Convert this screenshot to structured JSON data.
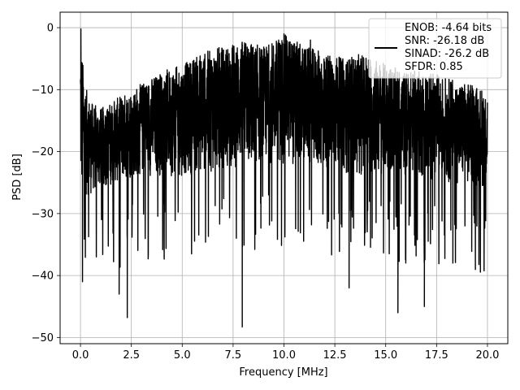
{
  "chart_data": {
    "type": "line",
    "xlabel": "Frequency [MHz]",
    "ylabel": "PSD [dB]",
    "xlim": [
      -1.0,
      21.0
    ],
    "ylim": [
      -51.0,
      2.5
    ],
    "xticks": [
      0.0,
      2.5,
      5.0,
      7.5,
      10.0,
      12.5,
      15.0,
      17.5,
      20.0
    ],
    "xtick_labels": [
      "0.0",
      "2.5",
      "5.0",
      "7.5",
      "10.0",
      "12.5",
      "15.0",
      "17.5",
      "20.0"
    ],
    "yticks": [
      0,
      -10,
      -20,
      -30,
      -40,
      -50
    ],
    "ytick_labels": [
      "0",
      "−10",
      "−20",
      "−30",
      "−40",
      "−50"
    ],
    "grid": true,
    "legend_position": "top-right",
    "legend_lines": [
      "ENOB: -4.64 bits",
      "SNR: -26.18 dB",
      "SINAD: -26.2 dB",
      "SFDR: 0.85"
    ],
    "series": [
      {
        "color": "#000000",
        "x_range": [
          0.0,
          20.0
        ],
        "envelope_upper_dB": [
          [
            0.0,
            -0.5
          ],
          [
            0.2,
            -9
          ],
          [
            0.5,
            -12
          ],
          [
            1.0,
            -13
          ],
          [
            2.0,
            -11
          ],
          [
            3.0,
            -9
          ],
          [
            4.0,
            -7
          ],
          [
            5.0,
            -6
          ],
          [
            6.0,
            -4
          ],
          [
            7.0,
            -3
          ],
          [
            8.0,
            -2
          ],
          [
            9.0,
            -3
          ],
          [
            10.0,
            -1
          ],
          [
            11.0,
            -3
          ],
          [
            12.0,
            -4
          ],
          [
            13.0,
            -5
          ],
          [
            14.0,
            -4
          ],
          [
            15.0,
            -6
          ],
          [
            16.0,
            -7
          ],
          [
            17.0,
            -7
          ],
          [
            18.0,
            -8
          ],
          [
            19.0,
            -9
          ],
          [
            20.0,
            -10
          ]
        ],
        "envelope_lower_dB": [
          [
            0.0,
            -28
          ],
          [
            1.0,
            -26
          ],
          [
            2.0,
            -25
          ],
          [
            3.0,
            -24
          ],
          [
            5.0,
            -24
          ],
          [
            7.0,
            -23
          ],
          [
            9.0,
            -22
          ],
          [
            10.0,
            -22
          ],
          [
            12.0,
            -23
          ],
          [
            14.0,
            -24
          ],
          [
            16.0,
            -24
          ],
          [
            18.0,
            -25
          ],
          [
            20.0,
            -26
          ]
        ],
        "notable_minima": [
          [
            0.1,
            -41
          ],
          [
            1.9,
            -43
          ],
          [
            2.3,
            -46.8
          ],
          [
            7.95,
            -48.3
          ],
          [
            13.2,
            -42
          ],
          [
            15.6,
            -46
          ],
          [
            16.9,
            -45
          ],
          [
            18.3,
            -38
          ]
        ],
        "notable_maxima": [
          [
            0.02,
            -0.2
          ],
          [
            10.0,
            -1
          ],
          [
            11.3,
            -2
          ]
        ]
      }
    ]
  }
}
